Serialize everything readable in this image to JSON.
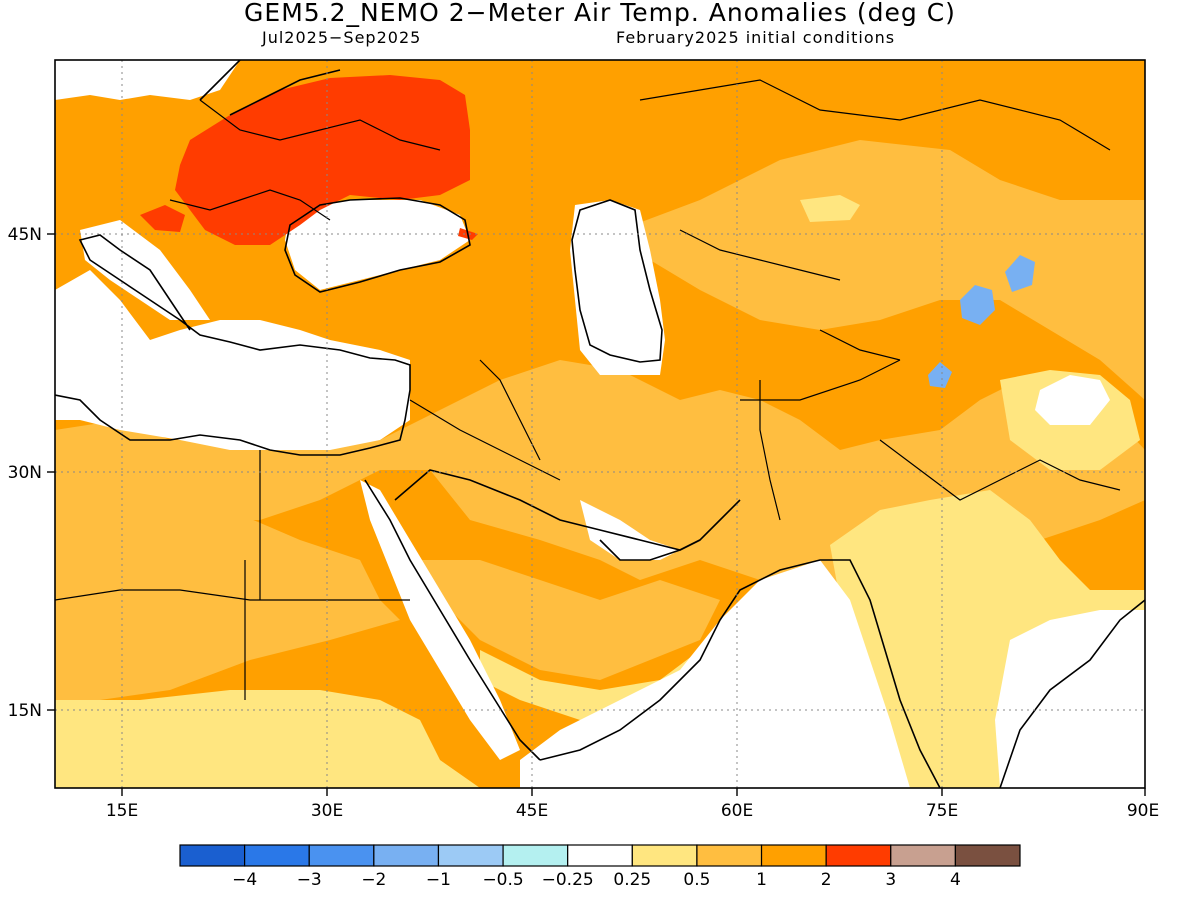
{
  "title": "GEM5.2_NEMO 2−Meter Air Temp. Anomalies (deg C)",
  "subtitle_left": "Jul2025−Sep2025",
  "subtitle_right": "February2025 initial conditions",
  "axes": {
    "lon_ticks": [
      "15E",
      "30E",
      "45E",
      "60E",
      "75E",
      "90E"
    ],
    "lat_ticks": [
      "45N",
      "30N",
      "15N"
    ]
  },
  "colorbar": {
    "labels": [
      "−4",
      "−3",
      "−2",
      "−1",
      "−0.5",
      "−0.25",
      "0.25",
      "0.5",
      "1",
      "2",
      "3",
      "4"
    ],
    "colors": [
      "#1a5fd0",
      "#2a78e8",
      "#4a92f0",
      "#78b0f2",
      "#9ccaf5",
      "#b4f0f0",
      "#ffffff",
      "#ffe680",
      "#ffbe40",
      "#ffa000",
      "#ff3c00",
      "#c8a090",
      "#7a5040"
    ]
  },
  "anomaly_colors": {
    "near_zero": "#ffffff",
    "light": "#ffe680",
    "moderate": "#ffbe40",
    "strong": "#ffa000",
    "very_strong": "#ff3c00",
    "cold": "#78b0f2"
  }
}
